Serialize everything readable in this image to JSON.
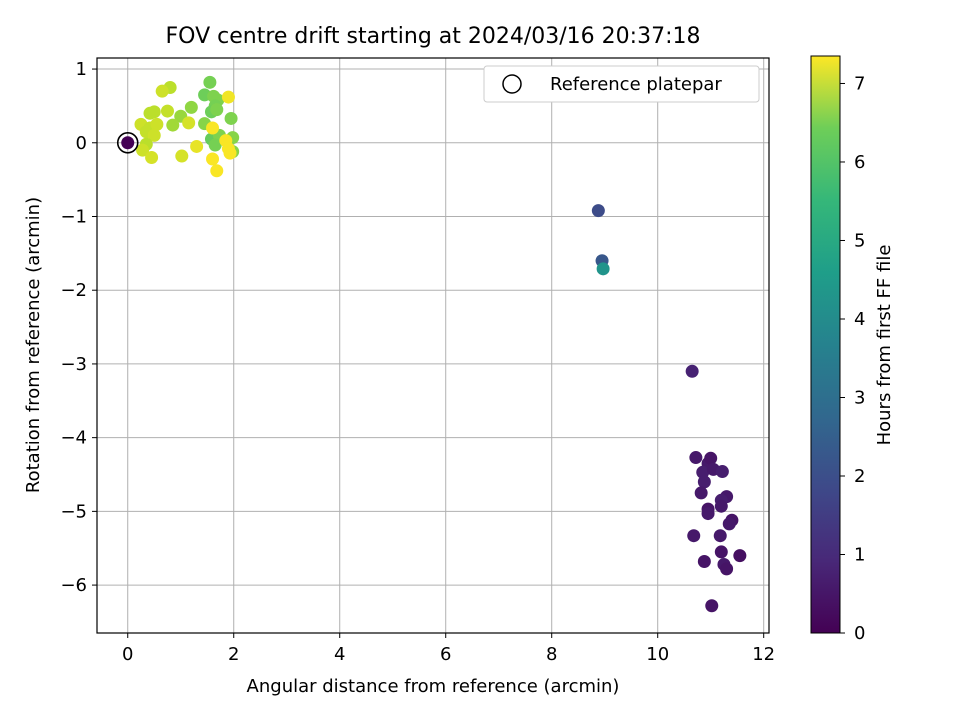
{
  "chart_data": {
    "type": "scatter",
    "title": "FOV centre drift starting at 2024/03/16 20:37:18",
    "xlabel": "Angular distance from reference (arcmin)",
    "ylabel": "Rotation from reference (arcmin)",
    "xlim": [
      -0.58,
      12.1
    ],
    "ylim": [
      -6.65,
      1.15
    ],
    "xticks": [
      0,
      2,
      4,
      6,
      8,
      10,
      12
    ],
    "yticks": [
      -6,
      -5,
      -4,
      -3,
      -2,
      -1,
      0,
      1
    ],
    "xtick_labels": [
      "0",
      "2",
      "4",
      "6",
      "8",
      "10",
      "12"
    ],
    "ytick_labels": [
      "−6",
      "−5",
      "−4",
      "−3",
      "−2",
      "−1",
      "0",
      "1"
    ],
    "grid": true,
    "legend": {
      "position": "top-right",
      "entries": [
        "Reference platepar"
      ]
    },
    "reference_point": {
      "x": 0,
      "y": 0
    },
    "colorbar": {
      "label": "Hours from first FF file",
      "range": [
        0,
        7.35
      ],
      "ticks": [
        0,
        1,
        2,
        3,
        4,
        5,
        6,
        7
      ],
      "tick_labels": [
        "0",
        "1",
        "2",
        "3",
        "4",
        "5",
        "6",
        "7"
      ],
      "colormap": "viridis"
    },
    "points": [
      {
        "x": 0.0,
        "y": 0.0,
        "c": 0.0
      },
      {
        "x": 10.72,
        "y": -4.27,
        "c": 0.5
      },
      {
        "x": 10.95,
        "y": -4.35,
        "c": 0.5
      },
      {
        "x": 11.0,
        "y": -4.28,
        "c": 0.4
      },
      {
        "x": 10.85,
        "y": -4.47,
        "c": 0.6
      },
      {
        "x": 11.05,
        "y": -4.43,
        "c": 0.5
      },
      {
        "x": 11.22,
        "y": -4.46,
        "c": 0.6
      },
      {
        "x": 10.88,
        "y": -4.6,
        "c": 0.6
      },
      {
        "x": 10.82,
        "y": -4.75,
        "c": 0.5
      },
      {
        "x": 11.3,
        "y": -4.8,
        "c": 0.5
      },
      {
        "x": 11.2,
        "y": -4.85,
        "c": 0.6
      },
      {
        "x": 10.95,
        "y": -4.97,
        "c": 0.4
      },
      {
        "x": 10.95,
        "y": -5.03,
        "c": 0.5
      },
      {
        "x": 11.2,
        "y": -4.93,
        "c": 0.5
      },
      {
        "x": 11.4,
        "y": -5.12,
        "c": 0.4
      },
      {
        "x": 11.35,
        "y": -5.17,
        "c": 0.5
      },
      {
        "x": 11.18,
        "y": -5.33,
        "c": 0.5
      },
      {
        "x": 10.68,
        "y": -5.33,
        "c": 0.5
      },
      {
        "x": 11.2,
        "y": -5.55,
        "c": 0.4
      },
      {
        "x": 11.55,
        "y": -5.6,
        "c": 0.3
      },
      {
        "x": 10.88,
        "y": -5.68,
        "c": 0.4
      },
      {
        "x": 11.25,
        "y": -5.72,
        "c": 0.5
      },
      {
        "x": 11.3,
        "y": -5.78,
        "c": 0.4
      },
      {
        "x": 11.02,
        "y": -6.28,
        "c": 0.4
      },
      {
        "x": 10.65,
        "y": -3.1,
        "c": 0.7
      },
      {
        "x": 8.88,
        "y": -0.92,
        "c": 1.7
      },
      {
        "x": 8.95,
        "y": -1.6,
        "c": 2.0
      },
      {
        "x": 8.97,
        "y": -1.71,
        "c": 3.8
      },
      {
        "x": 1.55,
        "y": 0.82,
        "c": 5.8
      },
      {
        "x": 1.45,
        "y": 0.65,
        "c": 5.7
      },
      {
        "x": 1.62,
        "y": 0.63,
        "c": 5.9
      },
      {
        "x": 1.7,
        "y": 0.58,
        "c": 5.9
      },
      {
        "x": 1.65,
        "y": 0.5,
        "c": 5.8
      },
      {
        "x": 1.58,
        "y": 0.42,
        "c": 5.7
      },
      {
        "x": 1.68,
        "y": 0.45,
        "c": 5.9
      },
      {
        "x": 1.95,
        "y": 0.33,
        "c": 5.9
      },
      {
        "x": 1.45,
        "y": 0.26,
        "c": 6.0
      },
      {
        "x": 1.58,
        "y": 0.05,
        "c": 5.6
      },
      {
        "x": 1.73,
        "y": 0.1,
        "c": 5.9
      },
      {
        "x": 1.65,
        "y": -0.03,
        "c": 5.8
      },
      {
        "x": 1.98,
        "y": 0.07,
        "c": 6.0
      },
      {
        "x": 1.98,
        "y": -0.12,
        "c": 6.0
      },
      {
        "x": 1.0,
        "y": 0.36,
        "c": 6.2
      },
      {
        "x": 1.2,
        "y": 0.48,
        "c": 6.1
      },
      {
        "x": 0.85,
        "y": 0.24,
        "c": 6.3
      },
      {
        "x": 0.8,
        "y": 0.75,
        "c": 6.6
      },
      {
        "x": 0.65,
        "y": 0.7,
        "c": 6.8
      },
      {
        "x": 0.75,
        "y": 0.43,
        "c": 6.7
      },
      {
        "x": 0.42,
        "y": 0.4,
        "c": 6.6
      },
      {
        "x": 0.5,
        "y": 0.42,
        "c": 6.6
      },
      {
        "x": 0.25,
        "y": 0.25,
        "c": 6.8
      },
      {
        "x": 0.42,
        "y": 0.2,
        "c": 6.7
      },
      {
        "x": 0.55,
        "y": 0.25,
        "c": 6.8
      },
      {
        "x": 0.35,
        "y": 0.15,
        "c": 6.7
      },
      {
        "x": 0.5,
        "y": 0.1,
        "c": 6.8
      },
      {
        "x": 0.35,
        "y": -0.02,
        "c": 6.6
      },
      {
        "x": 0.28,
        "y": -0.1,
        "c": 6.8
      },
      {
        "x": 0.45,
        "y": -0.2,
        "c": 6.9
      },
      {
        "x": 1.15,
        "y": 0.27,
        "c": 6.9
      },
      {
        "x": 1.02,
        "y": -0.18,
        "c": 6.9
      },
      {
        "x": 1.3,
        "y": -0.05,
        "c": 7.1
      },
      {
        "x": 1.9,
        "y": 0.62,
        "c": 7.2
      },
      {
        "x": 1.6,
        "y": 0.2,
        "c": 7.3
      },
      {
        "x": 1.85,
        "y": 0.03,
        "c": 7.3
      },
      {
        "x": 1.9,
        "y": -0.08,
        "c": 7.3
      },
      {
        "x": 1.93,
        "y": -0.14,
        "c": 7.3
      },
      {
        "x": 1.6,
        "y": -0.22,
        "c": 7.3
      },
      {
        "x": 1.68,
        "y": -0.38,
        "c": 7.3
      }
    ]
  }
}
